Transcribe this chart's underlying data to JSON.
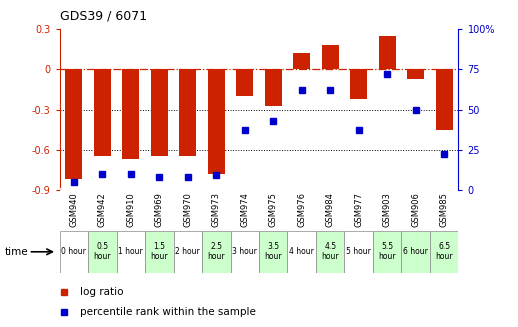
{
  "title": "GDS39 / 6071",
  "samples": [
    "GSM940",
    "GSM942",
    "GSM910",
    "GSM969",
    "GSM970",
    "GSM973",
    "GSM974",
    "GSM975",
    "GSM976",
    "GSM984",
    "GSM977",
    "GSM903",
    "GSM906",
    "GSM985"
  ],
  "time_labels": [
    "0 hour",
    "0.5\nhour",
    "1 hour",
    "1.5\nhour",
    "2 hour",
    "2.5\nhour",
    "3 hour",
    "3.5\nhour",
    "4 hour",
    "4.5\nhour",
    "5 hour",
    "5.5\nhour",
    "6 hour",
    "6.5\nhour"
  ],
  "time_bg": [
    "#ffffff",
    "#ccffcc",
    "#ffffff",
    "#ccffcc",
    "#ffffff",
    "#ccffcc",
    "#ffffff",
    "#ccffcc",
    "#ffffff",
    "#ccffcc",
    "#ffffff",
    "#ccffcc",
    "#ccffcc",
    "#ccffcc"
  ],
  "log_ratio": [
    -0.82,
    -0.65,
    -0.67,
    -0.65,
    -0.65,
    -0.78,
    -0.2,
    -0.27,
    0.12,
    0.18,
    -0.22,
    0.25,
    -0.07,
    -0.45
  ],
  "percentile": [
    5,
    10,
    10,
    8,
    8,
    9,
    37,
    43,
    62,
    62,
    37,
    72,
    50,
    22
  ],
  "ylim_left": [
    -0.9,
    0.3
  ],
  "ylim_right": [
    0,
    100
  ],
  "bar_color": "#cc2200",
  "dot_color": "#0000cc",
  "hline_color": "#cc2200",
  "grid_color": "black",
  "bg_plot": "white",
  "bg_gsm_row": "#c0c0c0",
  "legend_red_label": "log ratio",
  "legend_blue_label": "percentile rank within the sample",
  "bar_width": 0.6,
  "figwidth": 5.18,
  "figheight": 3.27,
  "dpi": 100
}
